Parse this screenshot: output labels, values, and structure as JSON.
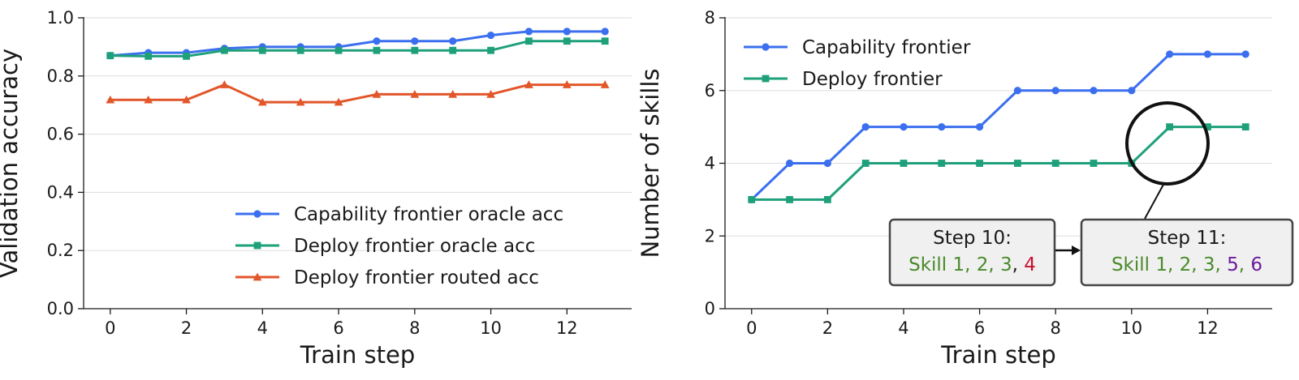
{
  "chart_data": [
    {
      "type": "line",
      "xlabel": "Train step",
      "ylabel": "Validation accuracy",
      "xlim": [
        -0.7,
        13.7
      ],
      "ylim": [
        0.0,
        1.0
      ],
      "xticks": [
        0,
        2,
        4,
        6,
        8,
        10,
        12
      ],
      "yticks": [
        0.0,
        0.2,
        0.4,
        0.6,
        0.8,
        1.0
      ],
      "ytick_labels": [
        "0.0",
        "0.2",
        "0.4",
        "0.6",
        "0.8",
        "1.0"
      ],
      "grid": "horizontal",
      "legend": "lower-right",
      "x": [
        0,
        1,
        2,
        3,
        4,
        5,
        6,
        7,
        8,
        9,
        10,
        11,
        12,
        13
      ],
      "series": [
        {
          "name": "Capability frontier oracle acc",
          "color": "#3b6fef",
          "marker": "circle",
          "values": [
            0.87,
            0.88,
            0.88,
            0.895,
            0.9,
            0.9,
            0.9,
            0.92,
            0.92,
            0.92,
            0.94,
            0.953,
            0.953,
            0.953
          ]
        },
        {
          "name": "Deploy frontier oracle acc",
          "color": "#1ea07a",
          "marker": "square",
          "values": [
            0.87,
            0.868,
            0.868,
            0.888,
            0.888,
            0.888,
            0.888,
            0.888,
            0.888,
            0.888,
            0.888,
            0.92,
            0.92,
            0.92
          ]
        },
        {
          "name": "Deploy frontier routed acc",
          "color": "#e2562a",
          "marker": "triangle",
          "values": [
            0.718,
            0.718,
            0.718,
            0.77,
            0.71,
            0.71,
            0.71,
            0.737,
            0.737,
            0.737,
            0.737,
            0.77,
            0.77,
            0.77
          ]
        }
      ]
    },
    {
      "type": "line",
      "xlabel": "Train step",
      "ylabel": "Number of skills",
      "xlim": [
        -0.7,
        13.7
      ],
      "ylim": [
        0,
        8
      ],
      "xticks": [
        0,
        2,
        4,
        6,
        8,
        10,
        12
      ],
      "yticks": [
        0,
        2,
        4,
        6,
        8
      ],
      "ytick_labels": [
        "0",
        "2",
        "4",
        "6",
        "8"
      ],
      "grid": "horizontal",
      "legend": "top-left",
      "x": [
        0,
        1,
        2,
        3,
        4,
        5,
        6,
        7,
        8,
        9,
        10,
        11,
        12,
        13
      ],
      "series": [
        {
          "name": "Capability frontier",
          "color": "#3b6fef",
          "marker": "circle",
          "values": [
            3,
            4,
            4,
            5,
            5,
            5,
            5,
            6,
            6,
            6,
            6,
            7,
            7,
            7
          ]
        },
        {
          "name": "Deploy frontier",
          "color": "#1ea07a",
          "marker": "square",
          "values": [
            3,
            3,
            3,
            4,
            4,
            4,
            4,
            4,
            4,
            4,
            4,
            5,
            5,
            5
          ]
        }
      ],
      "annotations": [
        {
          "title": "Step 10:",
          "parts": [
            {
              "text": "Skill 1, 2, 3",
              "color": "#4a8a2a"
            },
            {
              "text": ", ",
              "color": "#1a1a1a"
            },
            {
              "text": "4",
              "color": "#c8102e"
            }
          ]
        },
        {
          "title": "Step 11:",
          "parts": [
            {
              "text": "Skill 1, 2, 3",
              "color": "#4a8a2a"
            },
            {
              "text": ", ",
              "color": "#4a8a2a"
            },
            {
              "text": "5",
              "color": "#6a1b9a"
            },
            {
              "text": ", ",
              "color": "#4a8a2a"
            },
            {
              "text": "6",
              "color": "#6a1b9a"
            }
          ]
        }
      ]
    }
  ]
}
